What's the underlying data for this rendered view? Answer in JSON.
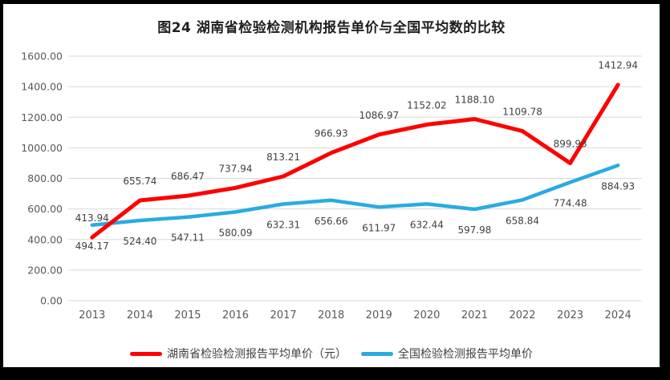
{
  "chart_data": {
    "type": "line",
    "title": "图24 湖南省检验检测机构报告单价与全国平均数的比较",
    "categories": [
      "2013",
      "2014",
      "2015",
      "2016",
      "2017",
      "2018",
      "2019",
      "2020",
      "2021",
      "2022",
      "2023",
      "2024"
    ],
    "series": [
      {
        "name": "湖南省检验检测报告平均单价（元）",
        "color": "#FE0000",
        "label_position": "above",
        "values": [
          413.94,
          655.74,
          686.47,
          737.94,
          813.21,
          966.93,
          1086.97,
          1152.02,
          1188.1,
          1109.78,
          899.93,
          1412.94
        ]
      },
      {
        "name": "全国检验检测报告平均单价",
        "color": "#29ABE2",
        "label_position": "below",
        "values": [
          494.17,
          524.4,
          547.11,
          580.09,
          632.31,
          656.66,
          611.97,
          632.44,
          597.98,
          658.84,
          774.48,
          884.93
        ]
      }
    ],
    "ylim": [
      0,
      1600
    ],
    "y_tick_step": 200,
    "y_tick_decimals": 2,
    "data_label_decimals": 2,
    "grid": true,
    "legend_position": "bottom"
  },
  "colors": {
    "frame_background": "#000000",
    "panel_background": "#FFFFFF",
    "gridline": "#D9D9D9",
    "axis_text": "#595959",
    "data_label_text": "#404040",
    "title_text": "#1F1F1F"
  }
}
